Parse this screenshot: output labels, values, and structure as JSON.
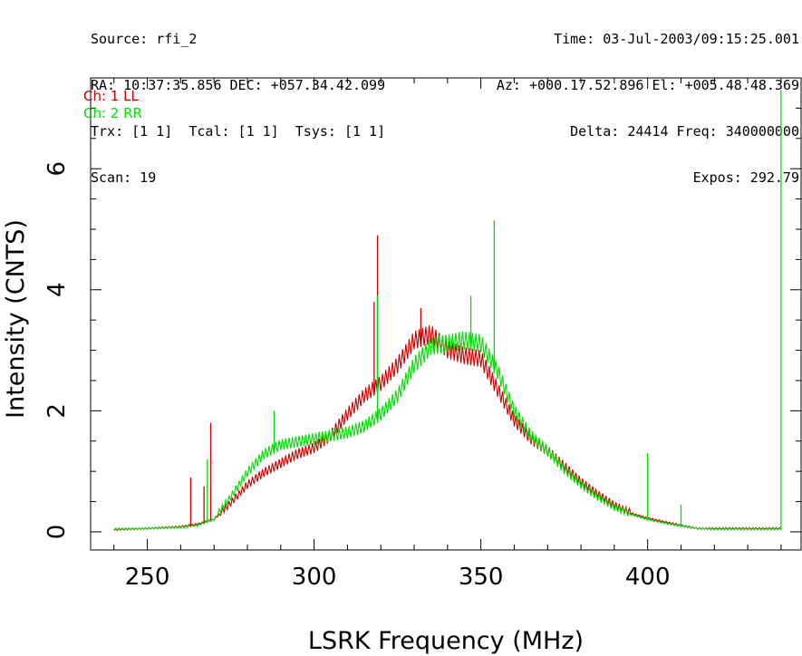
{
  "header": {
    "left_lines": [
      "Source: rfi_2",
      "RA: 10:37:35.856 DEC: +057.34.42.099",
      "Trx: [1 1]  Tcal: [1 1]  Tsys: [1 1]",
      "Scan: 19"
    ],
    "right_lines": [
      "Time: 03-Jul-2003/09:15:25.001",
      "Az: +000.17.52.896 El: +005.48.48.369",
      "Delta: 24414 Freq: 340000000",
      "Expos: 292.79"
    ]
  },
  "chart_data": {
    "type": "line",
    "title": "",
    "xlabel": "LSRK Frequency (MHz)",
    "ylabel": "Intensity (CNTS)",
    "xlim": [
      233,
      446
    ],
    "ylim": [
      -0.3,
      7.5
    ],
    "xticks": [
      250,
      300,
      350,
      400
    ],
    "yticks": [
      0,
      2,
      4,
      6
    ],
    "xtick_labels": [
      "250",
      "300",
      "350",
      "400"
    ],
    "ytick_labels": [
      "0",
      "2",
      "4",
      "6"
    ],
    "legend_position": "top-left",
    "series": [
      {
        "name": "Ch: 1 LL",
        "color": "#cc0000",
        "x": [
          240,
          250,
          260,
          265,
          270,
          275,
          280,
          285,
          290,
          295,
          300,
          305,
          310,
          315,
          320,
          325,
          330,
          335,
          340,
          345,
          350,
          355,
          360,
          365,
          370,
          375,
          380,
          385,
          390,
          395,
          400,
          405,
          410,
          415,
          420,
          430,
          440
        ],
        "y": [
          0.03,
          0.05,
          0.08,
          0.12,
          0.2,
          0.45,
          0.75,
          0.95,
          1.1,
          1.25,
          1.35,
          1.55,
          1.9,
          2.2,
          2.4,
          2.7,
          3.1,
          3.2,
          2.95,
          2.85,
          2.8,
          2.3,
          1.8,
          1.5,
          1.3,
          1.05,
          0.8,
          0.6,
          0.42,
          0.3,
          0.22,
          0.16,
          0.1,
          0.05,
          0.05,
          0.05,
          0.05
        ],
        "spikes": [
          {
            "x": 263,
            "y": 0.9
          },
          {
            "x": 267,
            "y": 0.75
          },
          {
            "x": 269,
            "y": 1.8
          },
          {
            "x": 288,
            "y": 1.0
          },
          {
            "x": 318,
            "y": 3.8
          },
          {
            "x": 319,
            "y": 4.9
          },
          {
            "x": 332,
            "y": 3.7
          }
        ]
      },
      {
        "name": "Ch: 2 RR",
        "color": "#00dd00",
        "x": [
          240,
          250,
          260,
          265,
          270,
          275,
          280,
          285,
          290,
          295,
          300,
          305,
          310,
          315,
          320,
          325,
          330,
          335,
          340,
          345,
          350,
          355,
          360,
          365,
          370,
          375,
          380,
          385,
          390,
          395,
          400,
          405,
          410,
          415,
          420,
          430,
          438,
          440
        ],
        "y": [
          0.04,
          0.05,
          0.07,
          0.1,
          0.2,
          0.55,
          0.95,
          1.25,
          1.4,
          1.45,
          1.5,
          1.55,
          1.6,
          1.7,
          1.9,
          2.2,
          2.7,
          3.0,
          3.05,
          3.1,
          3.05,
          2.6,
          1.95,
          1.55,
          1.3,
          1.0,
          0.75,
          0.55,
          0.38,
          0.28,
          0.2,
          0.14,
          0.09,
          0.05,
          0.04,
          0.04,
          0.04,
          0.04
        ],
        "spikes": [
          {
            "x": 268,
            "y": 1.2
          },
          {
            "x": 288,
            "y": 2.0
          },
          {
            "x": 319,
            "y": 3.9
          },
          {
            "x": 347,
            "y": 3.9
          },
          {
            "x": 354,
            "y": 5.15
          },
          {
            "x": 400,
            "y": 1.3
          },
          {
            "x": 410,
            "y": 0.45
          },
          {
            "x": 440,
            "y": 7.3
          }
        ]
      }
    ]
  }
}
